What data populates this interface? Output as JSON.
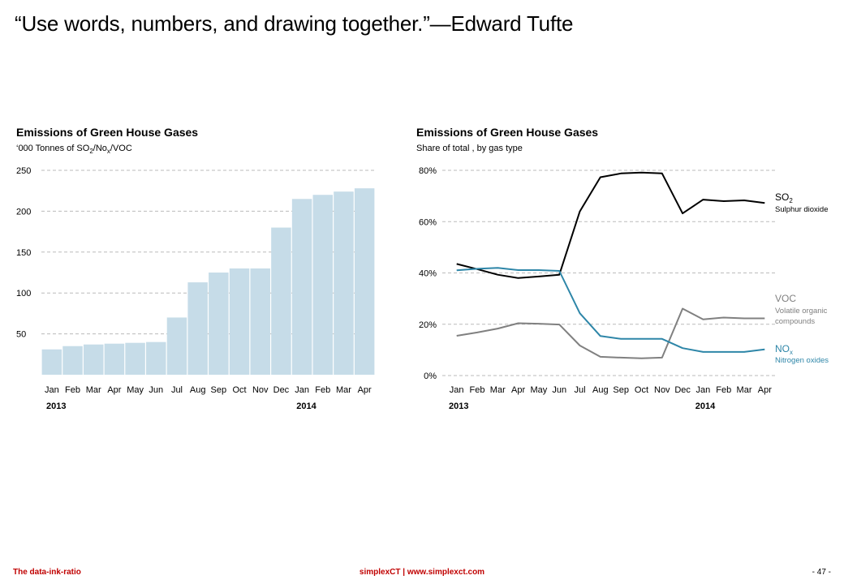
{
  "slide": {
    "title": "“Use words, numbers, and drawing together.”—Edward Tufte"
  },
  "footer": {
    "left": "The data-ink-ratio",
    "center_brand": "simplexCT",
    "center_sep": "|",
    "center_url": "www.simplexct.com",
    "page": "- 47 -"
  },
  "colors": {
    "bar": "#c6dce8",
    "so2": "#000000",
    "voc": "#808080",
    "nox": "#2e86a8",
    "grid": "#bbbbbb"
  },
  "chart_data": [
    {
      "type": "bar",
      "title": "Emissions of Green House Gases",
      "subtitle_prefix": "‘000 Tonnes of SO",
      "subtitle_sub1": "2",
      "subtitle_mid": "/No",
      "subtitle_sub2": "x",
      "subtitle_suffix": "/VOC",
      "categories": [
        "Jan",
        "Feb",
        "Mar",
        "Apr",
        "May",
        "Jun",
        "Jul",
        "Aug",
        "Sep",
        "Oct",
        "Nov",
        "Dec",
        "Jan",
        "Feb",
        "Mar",
        "Apr"
      ],
      "years": [
        {
          "label": "2013",
          "index": 0
        },
        {
          "label": "2014",
          "index": 12
        }
      ],
      "values": [
        31,
        35,
        37,
        38,
        39,
        40,
        70,
        113,
        125,
        130,
        130,
        180,
        215,
        220,
        224,
        228
      ],
      "ylim": [
        0,
        250
      ],
      "yticks": [
        50,
        100,
        150,
        200,
        250
      ],
      "ytick_labels": [
        "50",
        "100",
        "150",
        "200",
        "250"
      ],
      "grid": true
    },
    {
      "type": "line",
      "title": "Emissions of Green House Gases",
      "subtitle": "Share of total , by gas type",
      "categories": [
        "Jan",
        "Feb",
        "Mar",
        "Apr",
        "May",
        "Jun",
        "Jul",
        "Aug",
        "Sep",
        "Oct",
        "Nov",
        "Dec",
        "Jan",
        "Feb",
        "Mar",
        "Apr"
      ],
      "years": [
        {
          "label": "2013",
          "index": 0
        },
        {
          "label": "2014",
          "index": 12
        }
      ],
      "ylim": [
        0,
        80
      ],
      "yticks": [
        0,
        20,
        40,
        60,
        80
      ],
      "ytick_labels": [
        "0%",
        "20%",
        "40%",
        "60%",
        "80%"
      ],
      "grid": true,
      "series": [
        {
          "name": "SO",
          "name_sub": "2",
          "description": "Sulphur dioxide",
          "key": "so2",
          "values": [
            43.5,
            41.5,
            39.3,
            38.0,
            38.6,
            39.3,
            64.0,
            77.3,
            78.8,
            79.1,
            78.8,
            63.2,
            68.6,
            68.0,
            68.3,
            67.3
          ]
        },
        {
          "name": "VOC",
          "name_sub": "",
          "description_line1": "Volatile organic",
          "description_line2": "compounds",
          "key": "voc",
          "values": [
            15.5,
            16.8,
            18.3,
            20.4,
            20.2,
            19.9,
            11.7,
            7.3,
            7.0,
            6.7,
            7.0,
            26.1,
            21.9,
            22.6,
            22.3,
            22.3
          ]
        },
        {
          "name": "NO",
          "name_sub": "x",
          "description": "Nitrogen oxides",
          "key": "nox",
          "values": [
            41.0,
            41.6,
            42.0,
            41.1,
            41.1,
            40.8,
            24.3,
            15.4,
            14.3,
            14.3,
            14.3,
            10.7,
            9.2,
            9.2,
            9.2,
            10.2
          ]
        }
      ]
    }
  ]
}
